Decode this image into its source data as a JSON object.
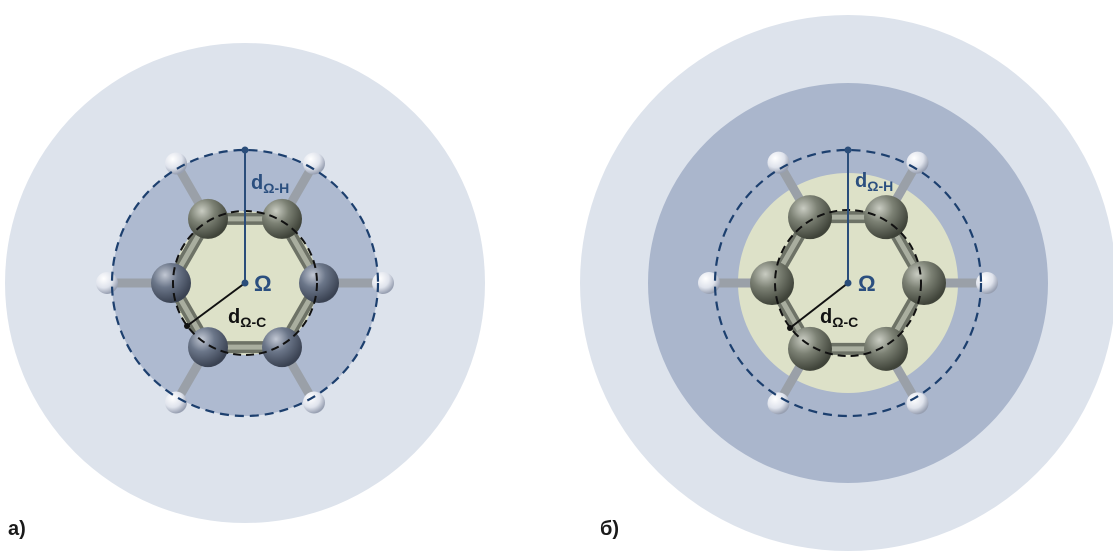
{
  "panels": [
    {
      "id": "a",
      "label": "а)",
      "center_symbol": "Ω",
      "radius_h_label": {
        "main": "d",
        "sub": "Ω-H"
      },
      "radius_c_label": {
        "main": "d",
        "sub": "Ω-C"
      },
      "layers": [
        "outer-sphere",
        "inner-sphere",
        "core"
      ]
    },
    {
      "id": "b",
      "label": "б)",
      "center_symbol": "Ω",
      "radius_h_label": {
        "main": "d",
        "sub": "Ω-H"
      },
      "radius_c_label": {
        "main": "d",
        "sub": "Ω-C"
      },
      "layers": [
        "outer-sphere",
        "middle-sphere",
        "core"
      ]
    }
  ],
  "colors": {
    "outer_sphere": "#dde3ec",
    "inner_sphere_a": "#aebad0",
    "middle_sphere_b": "#aab6cc",
    "core": "#dde1c8",
    "dashed_circle": "#1c3f6e",
    "radius_h_line": "#2a4d7a",
    "radius_c_line": "#111111",
    "carbon": "#6d7266",
    "carbon_bluish": "#5e6a80",
    "hydrogen": "#dfe3ec",
    "bond": "#8e9484",
    "label_h": "#2b4f7f",
    "label_c": "#111111"
  }
}
